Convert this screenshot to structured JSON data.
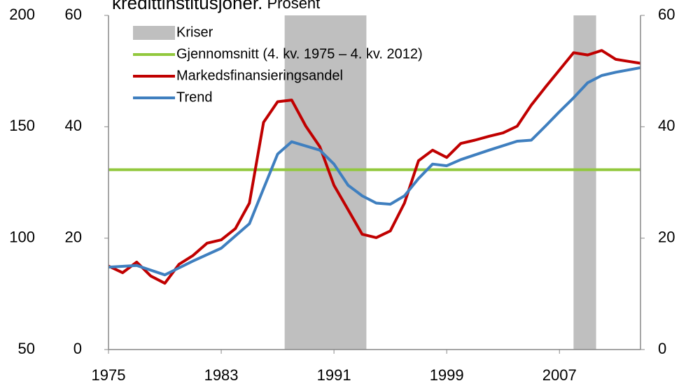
{
  "chart_data": {
    "type": "line",
    "title": "kredittinstitusjoner.",
    "subtitle": "Prosent",
    "xlim": [
      1975,
      2012.75
    ],
    "xticks": [
      1975,
      1983,
      1991,
      1999,
      2007
    ],
    "ylim": [
      0,
      60
    ],
    "yticks": [
      0,
      20,
      40,
      60
    ],
    "y2lim": [
      0,
      60
    ],
    "y2ticks": [
      0,
      20,
      40,
      60
    ],
    "y3lim": [
      50,
      200
    ],
    "y3ticks": [
      50,
      100,
      150,
      200
    ],
    "shaded": {
      "name": "Kriser",
      "color": "#bfbfbf",
      "ranges": [
        [
          1987.5,
          1993.3
        ],
        [
          2008.0,
          2009.6
        ]
      ]
    },
    "series": [
      {
        "name": "Gjennomsnitt (4. kv. 1975 – 4. kv. 2012)",
        "color": "#92c83e",
        "x": [
          1975,
          2012.75
        ],
        "values": [
          32.3,
          32.3
        ]
      },
      {
        "name": "Markedsfinansieringsandel",
        "color": "#c00000",
        "x": [
          1975,
          1976,
          1977,
          1978,
          1979,
          1980,
          1981,
          1982,
          1983,
          1984,
          1985,
          1986,
          1987,
          1988,
          1989,
          1990,
          1991,
          1992,
          1993,
          1994,
          1995,
          1996,
          1997,
          1998,
          1999,
          2000,
          2001,
          2002,
          2003,
          2004,
          2005,
          2006,
          2007,
          2008,
          2009,
          2010,
          2011,
          2012.75
        ],
        "values": [
          15.0,
          13.8,
          15.7,
          13.2,
          11.9,
          15.3,
          16.9,
          19.1,
          19.7,
          21.7,
          26.3,
          40.8,
          44.5,
          44.8,
          40.1,
          36.4,
          29.5,
          25.1,
          20.7,
          20.1,
          21.3,
          26.3,
          33.9,
          35.8,
          34.5,
          37.0,
          37.6,
          38.3,
          38.9,
          40.1,
          43.9,
          47.1,
          50.2,
          53.3,
          52.9,
          53.7,
          52.1,
          51.4
        ]
      },
      {
        "name": "Trend",
        "color": "#3f7fbf",
        "x": [
          1975,
          1977,
          1979,
          1981,
          1983,
          1985,
          1986,
          1987,
          1988,
          1990,
          1991,
          1992,
          1993,
          1994,
          1995,
          1996,
          1997,
          1998,
          1999,
          2000,
          2002,
          2004,
          2005,
          2006,
          2007,
          2008,
          2009,
          2010,
          2011,
          2012.75
        ],
        "values": [
          14.8,
          15.1,
          13.4,
          15.9,
          18.2,
          22.6,
          28.9,
          35.1,
          37.3,
          35.8,
          33.3,
          29.5,
          27.6,
          26.3,
          26.1,
          27.6,
          30.7,
          33.3,
          33.0,
          34.1,
          35.8,
          37.4,
          37.6,
          40.1,
          42.7,
          45.2,
          47.9,
          49.2,
          49.8,
          50.6
        ]
      }
    ]
  }
}
